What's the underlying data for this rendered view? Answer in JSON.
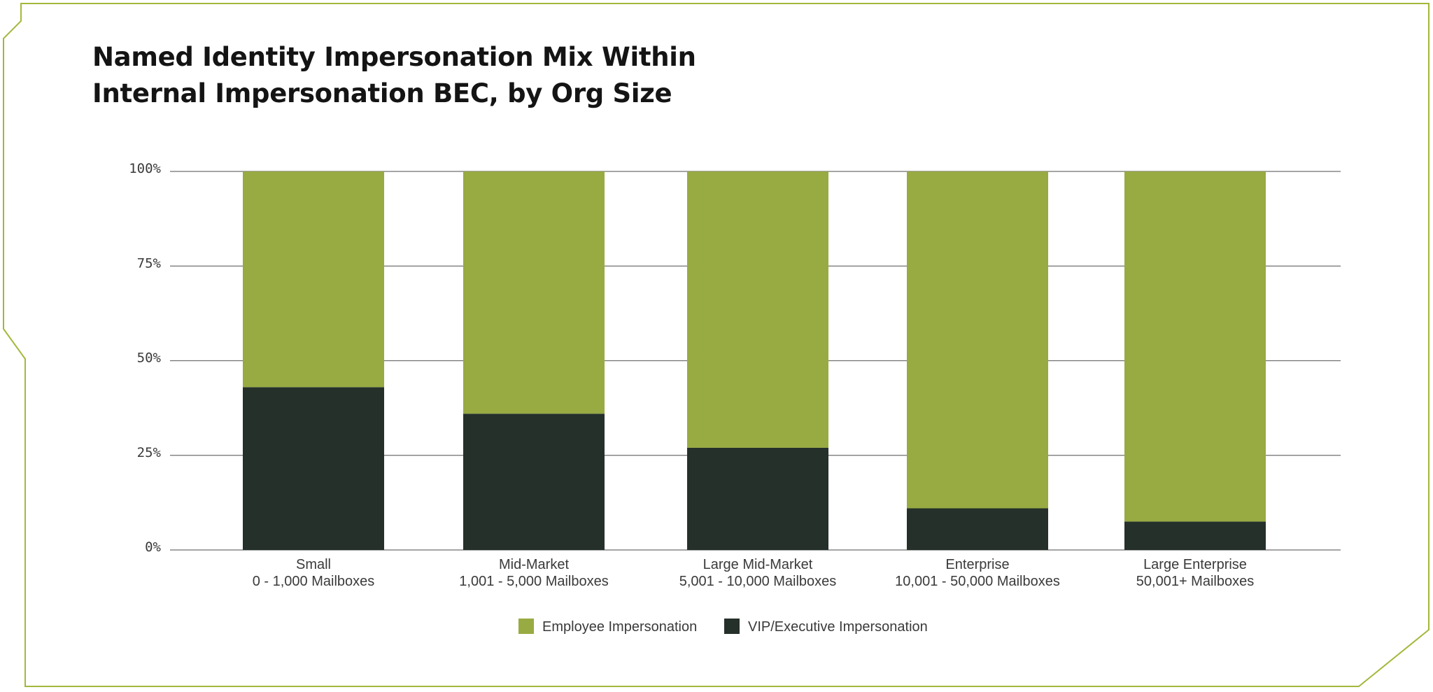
{
  "title_lines": [
    "Named Identity Impersonation Mix Within",
    "Internal Impersonation BEC, by Org Size"
  ],
  "colors": {
    "frame": "#a3b83c",
    "employee": "#98aa42",
    "vip": "#25302b",
    "grid": "#6f6f6f",
    "text": "#3a3a3a"
  },
  "chart_data": {
    "type": "bar",
    "stacked": true,
    "title": "Named Identity Impersonation Mix Within Internal Impersonation BEC, by Org Size",
    "categories": [
      [
        "Small",
        "0 - 1,000 Mailboxes"
      ],
      [
        "Mid-Market",
        "1,001 - 5,000 Mailboxes"
      ],
      [
        "Large Mid-Market",
        "5,001 - 10,000 Mailboxes"
      ],
      [
        "Enterprise",
        "10,001 - 50,000 Mailboxes"
      ],
      [
        "Large Enterprise",
        "50,001+ Mailboxes"
      ]
    ],
    "series": [
      {
        "name": "VIP/Executive Impersonation",
        "color": "#25302b",
        "values": [
          43,
          36,
          27,
          11,
          7.5
        ]
      },
      {
        "name": "Employee Impersonation",
        "color": "#98aa42",
        "values": [
          57,
          64,
          73,
          89,
          92.5
        ]
      }
    ],
    "ylim": [
      0,
      100
    ],
    "yticks": [
      0,
      25,
      50,
      75,
      100
    ],
    "ytick_labels": [
      "0%",
      "25%",
      "50%",
      "75%",
      "100%"
    ],
    "grid": true,
    "legend": {
      "position": "bottom-center",
      "entries": [
        "Employee Impersonation",
        "VIP/Executive Impersonation"
      ]
    }
  }
}
